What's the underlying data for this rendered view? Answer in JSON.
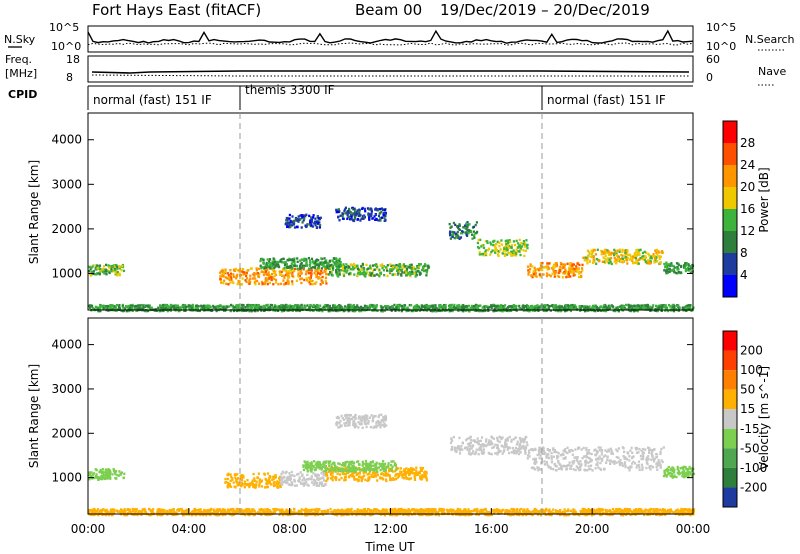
{
  "header": {
    "title": "Fort Hays East (fitACF)",
    "beam": "Beam 00",
    "dates": "19/Dec/2019 – 20/Dec/2019"
  },
  "side_labels": {
    "nsky": "N.Sky",
    "freq_line1": "Freq.",
    "freq_line2": "[MHz]",
    "cpid": "CPID",
    "nsearch": "N.Search",
    "nave": "Nave"
  },
  "small_axes": {
    "noise_ticks_left": [
      "10^5",
      "10^0"
    ],
    "noise_ticks_right": [
      "10^5",
      "10^0"
    ],
    "freq_ticks_left": [
      "18",
      "8"
    ],
    "nave_ticks_right": [
      "60",
      "0"
    ]
  },
  "cpid_segments": [
    {
      "label": "normal (fast) 151 IF",
      "start_hour": 0
    },
    {
      "label": "themis 3300 IF",
      "start_hour": 6
    },
    {
      "label": "normal (fast) 151 IF",
      "start_hour": 18
    }
  ],
  "chart_data": [
    {
      "type": "heatmap",
      "name": "power",
      "xlabel": "",
      "ylabel": "Slant Range [km]",
      "x_range_hours": [
        0,
        24
      ],
      "ylim": [
        180,
        4600
      ],
      "yticks": [
        "1000",
        "2000",
        "3000",
        "4000"
      ],
      "colorbar": {
        "label": "Power [dB]",
        "ticks": [
          "4",
          "8",
          "12",
          "16",
          "20",
          "24",
          "28"
        ],
        "colors": [
          "#0000ff",
          "#1e3ca0",
          "#2f7f3c",
          "#3cb43c",
          "#f0c800",
          "#ff9600",
          "#ff5000",
          "#ff0000"
        ]
      },
      "scatter_regions": [
        {
          "hours": [
            0.0,
            1.4
          ],
          "range_km": [
            1100,
            120
          ],
          "level": 14
        },
        {
          "hours": [
            5.2,
            9.5
          ],
          "range_km": [
            960,
            180
          ],
          "level": 22
        },
        {
          "hours": [
            9.5,
            13.5
          ],
          "range_km": [
            1100,
            140
          ],
          "level": 14
        },
        {
          "hours": [
            6.8,
            10.0
          ],
          "range_km": [
            1250,
            120
          ],
          "level": 12
        },
        {
          "hours": [
            7.8,
            9.2
          ],
          "range_km": [
            2200,
            150
          ],
          "level": 6
        },
        {
          "hours": [
            9.8,
            11.8
          ],
          "range_km": [
            2350,
            150
          ],
          "level": 6
        },
        {
          "hours": [
            14.3,
            15.4
          ],
          "range_km": [
            2000,
            200
          ],
          "level": 9
        },
        {
          "hours": [
            15.4,
            17.4
          ],
          "range_km": [
            1600,
            180
          ],
          "level": 16
        },
        {
          "hours": [
            17.4,
            19.6
          ],
          "range_km": [
            1100,
            160
          ],
          "level": 22
        },
        {
          "hours": [
            19.6,
            22.8
          ],
          "range_km": [
            1400,
            160
          ],
          "level": 18
        },
        {
          "hours": [
            22.8,
            24.0
          ],
          "range_km": [
            1150,
            120
          ],
          "level": 12
        },
        {
          "hours": [
            0.0,
            24.0
          ],
          "range_km": [
            250,
            70
          ],
          "level": 12
        }
      ]
    },
    {
      "type": "heatmap",
      "name": "velocity",
      "xlabel": "Time UT",
      "ylabel": "Slant Range [km]",
      "x_range_hours": [
        0,
        24
      ],
      "xticks": [
        "00:00",
        "04:00",
        "08:00",
        "12:00",
        "16:00",
        "20:00",
        "00:00"
      ],
      "ylim": [
        180,
        4600
      ],
      "yticks": [
        "1000",
        "2000",
        "3000",
        "4000"
      ],
      "colorbar": {
        "label": "Velocity [m s^-1]",
        "ticks": [
          "200",
          "100",
          "50",
          "15",
          "-15",
          "-50",
          "-100",
          "-200"
        ],
        "colors": [
          "#1e3ca0",
          "#2f7f3c",
          "#4fa84f",
          "#7ccf4f",
          "#c8c8c8",
          "#ffb000",
          "#ff8000",
          "#ff4000",
          "#ff0000"
        ]
      },
      "scatter_regions": [
        {
          "hours": [
            0.0,
            1.4
          ],
          "range_km": [
            1100,
            120
          ],
          "level": "green"
        },
        {
          "hours": [
            5.4,
            7.6
          ],
          "range_km": [
            960,
            160
          ],
          "level": "orange"
        },
        {
          "hours": [
            7.6,
            9.4
          ],
          "range_km": [
            1000,
            160
          ],
          "level": "gray"
        },
        {
          "hours": [
            9.4,
            13.4
          ],
          "range_km": [
            1100,
            150
          ],
          "level": "orange"
        },
        {
          "hours": [
            8.5,
            12.2
          ],
          "range_km": [
            1280,
            120
          ],
          "level": "green"
        },
        {
          "hours": [
            9.8,
            11.8
          ],
          "range_km": [
            2300,
            150
          ],
          "level": "gray"
        },
        {
          "hours": [
            14.3,
            17.4
          ],
          "range_km": [
            1750,
            200
          ],
          "level": "gray"
        },
        {
          "hours": [
            17.4,
            22.8
          ],
          "range_km": [
            1450,
            260
          ],
          "level": "gray"
        },
        {
          "hours": [
            22.8,
            24.0
          ],
          "range_km": [
            1150,
            120
          ],
          "level": "green"
        },
        {
          "hours": [
            0.0,
            24.0
          ],
          "range_km": [
            250,
            70
          ],
          "level": "orange"
        }
      ]
    }
  ],
  "axis_labels": {
    "x_label": "Time UT"
  }
}
